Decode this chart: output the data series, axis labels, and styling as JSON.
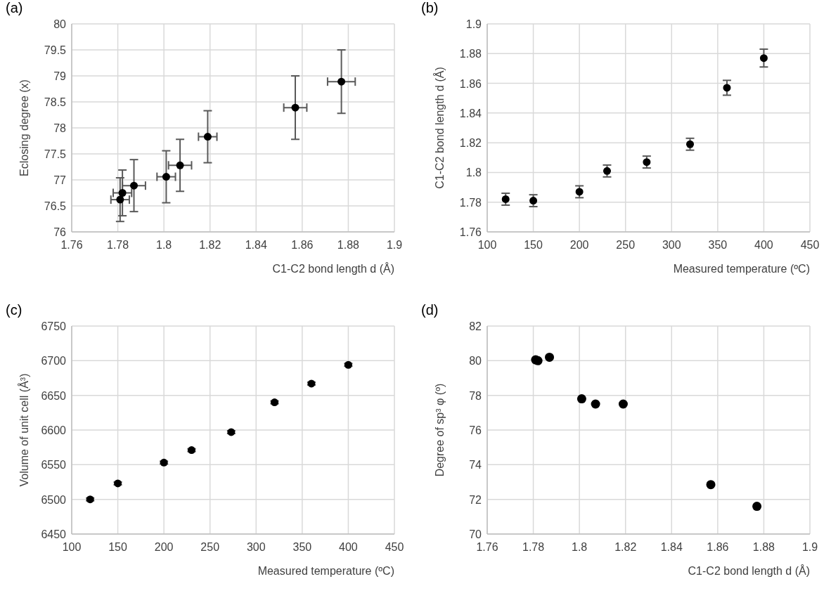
{
  "chart_data": [
    {
      "type": "scatter",
      "title": "(a)",
      "xlabel": "C1-C2 bond length d (Å)",
      "ylabel": "Eclosing degree (x)",
      "x": [
        1.781,
        1.782,
        1.787,
        1.801,
        1.807,
        1.819,
        1.857,
        1.877
      ],
      "values": [
        76.62,
        76.75,
        76.89,
        77.06,
        77.28,
        77.83,
        78.39,
        78.89
      ],
      "errors": [
        0.42,
        0.44,
        0.5,
        0.5,
        0.5,
        0.5,
        0.61,
        0.61
      ],
      "xerrors": [
        0.004,
        0.004,
        0.005,
        0.004,
        0.005,
        0.004,
        0.005,
        0.006
      ],
      "color": "#000000",
      "marker": "circle",
      "xlim": [
        1.76,
        1.9
      ],
      "xticks": [
        1.76,
        1.78,
        1.8,
        1.82,
        1.84,
        1.86,
        1.88,
        1.9
      ],
      "ylim": [
        76,
        80
      ],
      "yticks": [
        76,
        76.5,
        77,
        77.5,
        78,
        78.5,
        79,
        79.5,
        80
      ],
      "grid": true
    },
    {
      "type": "scatter",
      "title": "(b)",
      "xlabel": "Measured temperature (ºC)",
      "ylabel": "C1-C2 bond length d (Å)",
      "x": [
        120,
        150,
        200,
        230,
        273,
        320,
        360,
        400
      ],
      "values": [
        1.782,
        1.781,
        1.787,
        1.801,
        1.807,
        1.819,
        1.857,
        1.877
      ],
      "errors": [
        0.004,
        0.004,
        0.004,
        0.004,
        0.004,
        0.004,
        0.005,
        0.006
      ],
      "color": "#000000",
      "marker": "circle",
      "xlim": [
        100,
        450
      ],
      "xticks": [
        100,
        150,
        200,
        250,
        300,
        350,
        400,
        450
      ],
      "ylim": [
        1.76,
        1.9
      ],
      "yticks": [
        1.76,
        1.78,
        1.8,
        1.82,
        1.84,
        1.86,
        1.88,
        1.9
      ],
      "grid": true
    },
    {
      "type": "scatter",
      "title": "(c)",
      "xlabel": "Measured temperature (ºC)",
      "ylabel": "Volume of unit cell (Å³)",
      "x": [
        120,
        150,
        200,
        230,
        273,
        320,
        360,
        400
      ],
      "values": [
        6500,
        6523,
        6553,
        6571,
        6597,
        6640,
        6667,
        6694
      ],
      "errors": [
        2,
        2,
        2,
        2,
        2,
        2,
        2,
        2
      ],
      "color": "#000000",
      "marker": "circle",
      "xlim": [
        100,
        450
      ],
      "xticks": [
        100,
        150,
        200,
        250,
        300,
        350,
        400,
        450
      ],
      "ylim": [
        6450,
        6750
      ],
      "yticks": [
        6450,
        6500,
        6550,
        6600,
        6650,
        6700,
        6750
      ],
      "grid": true
    },
    {
      "type": "scatter",
      "title": "(d)",
      "xlabel": "C1-C2 bond length d (Å)",
      "ylabel": "Degree of sp³ φ (º)",
      "x": [
        1.781,
        1.782,
        1.787,
        1.801,
        1.807,
        1.819,
        1.857,
        1.877
      ],
      "values": [
        80.05,
        80.0,
        80.2,
        77.8,
        77.5,
        77.5,
        72.85,
        71.6
      ],
      "color": "#000000",
      "marker": "circle",
      "xlim": [
        1.76,
        1.9
      ],
      "xticks": [
        1.76,
        1.78,
        1.8,
        1.82,
        1.84,
        1.86,
        1.88,
        1.9
      ],
      "ylim": [
        70,
        82
      ],
      "yticks": [
        70,
        72,
        74,
        76,
        78,
        80,
        82
      ],
      "grid": true
    }
  ]
}
